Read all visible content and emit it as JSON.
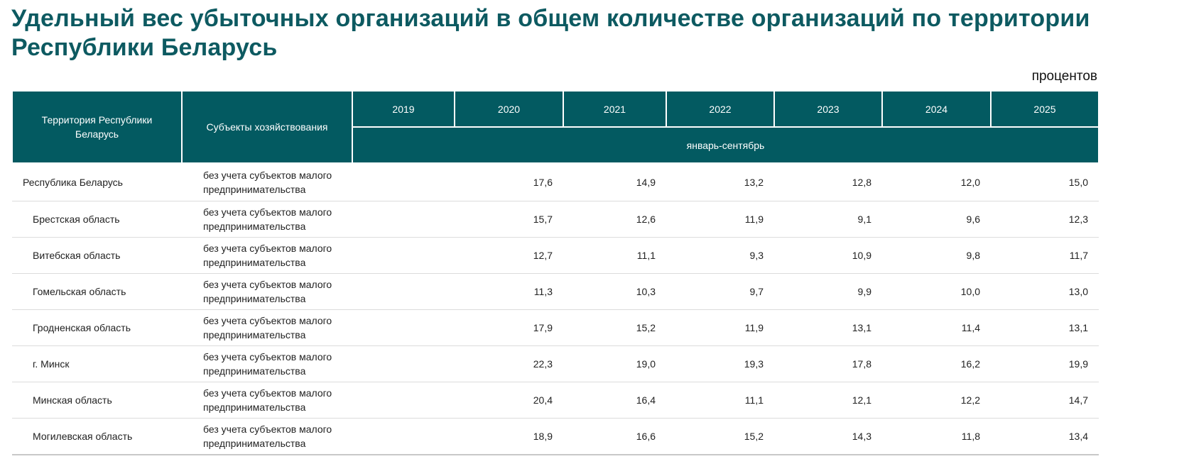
{
  "title": "Удельный вес убыточных организаций в общем количестве организаций по территории Республики Беларусь",
  "units": "процентов",
  "table": {
    "header": {
      "territory": "Территория Республики Беларусь",
      "subjects": "Субъекты хозяйствования",
      "years": [
        "2019",
        "2020",
        "2021",
        "2022",
        "2023",
        "2024",
        "2025"
      ],
      "period": "январь-сентябрь"
    },
    "rows": [
      {
        "territory": "Республика Беларусь",
        "subject": "без учета субъектов малого предпринимательства",
        "values": [
          "",
          "17,6",
          "14,9",
          "13,2",
          "12,8",
          "12,0",
          "15,0"
        ]
      },
      {
        "territory": "Брестская область",
        "subject": "без учета субъектов малого предпринимательства",
        "values": [
          "",
          "15,7",
          "12,6",
          "11,9",
          "9,1",
          "9,6",
          "12,3"
        ]
      },
      {
        "territory": "Витебская область",
        "subject": "без учета субъектов малого предпринимательства",
        "values": [
          "",
          "12,7",
          "11,1",
          "9,3",
          "10,9",
          "9,8",
          "11,7"
        ]
      },
      {
        "territory": "Гомельская область",
        "subject": "без учета субъектов малого предпринимательства",
        "values": [
          "",
          "11,3",
          "10,3",
          "9,7",
          "9,9",
          "10,0",
          "13,0"
        ]
      },
      {
        "territory": "Гродненская область",
        "subject": "без учета субъектов малого предпринимательства",
        "values": [
          "",
          "17,9",
          "15,2",
          "11,9",
          "13,1",
          "11,4",
          "13,1"
        ]
      },
      {
        "territory": "г. Минск",
        "subject": "без учета субъектов малого предпринимательства",
        "values": [
          "",
          "22,3",
          "19,0",
          "19,3",
          "17,8",
          "16,2",
          "19,9"
        ]
      },
      {
        "territory": "Минская область",
        "subject": "без учета субъектов малого предпринимательства",
        "values": [
          "",
          "20,4",
          "16,4",
          "11,1",
          "12,1",
          "12,2",
          "14,7"
        ]
      },
      {
        "territory": "Могилевская область",
        "subject": "без учета субъектов малого предпринимательства",
        "values": [
          "",
          "18,9",
          "16,6",
          "15,2",
          "14,3",
          "11,8",
          "13,4"
        ]
      }
    ]
  }
}
